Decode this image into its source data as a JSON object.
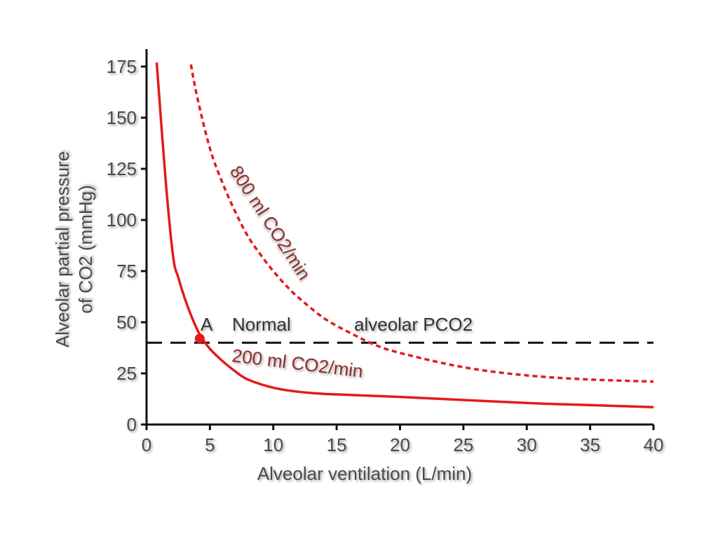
{
  "chart_data": {
    "type": "line",
    "title": "",
    "xlabel": "Alveolar ventilation (L/min)",
    "ylabel_lines": [
      "Alveolar partial pressure",
      "of CO2 (mmHg)"
    ],
    "xlim": [
      0,
      40
    ],
    "ylim": [
      0,
      175
    ],
    "xticks": [
      0,
      5,
      10,
      15,
      20,
      25,
      30,
      35,
      40
    ],
    "yticks": [
      0,
      25,
      50,
      75,
      100,
      125,
      150,
      175
    ],
    "grid": false,
    "series": [
      {
        "name": "200 ml CO2/min",
        "style": "solid",
        "color": "#e31b1b",
        "x": [
          0.8,
          1.5,
          2.1,
          2.5,
          3.0,
          3.6,
          4.2,
          5.0,
          6.0,
          7.0,
          8.0,
          10.0,
          12.0,
          14.0,
          16.0,
          20.0,
          25.0,
          30.0,
          35.0,
          40.0
        ],
        "y": [
          177,
          120,
          82,
          72,
          62,
          52,
          44,
          37,
          31,
          26,
          22,
          18,
          16,
          15,
          14.5,
          13.5,
          12,
          10.5,
          9.5,
          8.5
        ]
      },
      {
        "name": "800 ml CO2/min",
        "style": "dotted",
        "color": "#e31b1b",
        "x": [
          3.5,
          4.0,
          5.0,
          6.0,
          7.0,
          8.0,
          9.0,
          10.0,
          11.0,
          12.0,
          14.0,
          16.0,
          18.0,
          20.0,
          25.0,
          30.0,
          35.0,
          40.0
        ],
        "y": [
          176,
          160,
          135,
          118,
          104,
          92,
          83,
          75,
          68,
          62,
          52,
          45,
          39,
          35,
          28,
          24,
          22,
          21
        ]
      }
    ],
    "reference_line": {
      "y": 40,
      "style": "dashed",
      "color": "#111111",
      "x_start": 0,
      "x_end": 40
    },
    "point": {
      "label": "A",
      "x": 4.2,
      "y": 42,
      "color": "#e31b1b"
    },
    "annotations": {
      "normal": "Normal",
      "alveolar": "alveolar PCO2",
      "curve_200": "200 ml CO2/min",
      "curve_800": "800 ml CO2/min"
    }
  }
}
